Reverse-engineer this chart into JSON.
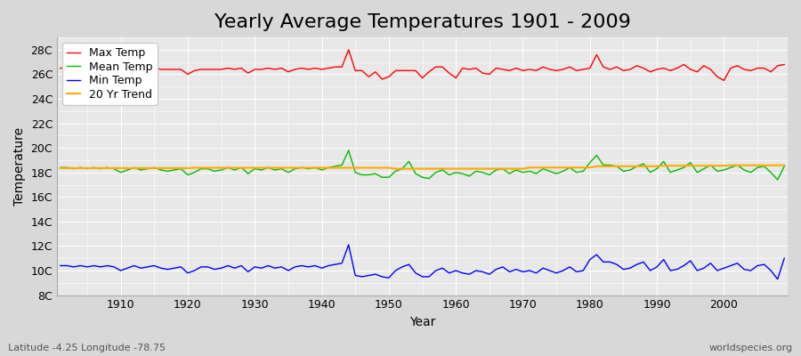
{
  "title": "Yearly Average Temperatures 1901 - 2009",
  "xlabel": "Year",
  "ylabel": "Temperature",
  "lat_lon_label": "Latitude -4.25 Longitude -78.75",
  "watermark": "worldspecies.org",
  "years": [
    1901,
    1902,
    1903,
    1904,
    1905,
    1906,
    1907,
    1908,
    1909,
    1910,
    1911,
    1912,
    1913,
    1914,
    1915,
    1916,
    1917,
    1918,
    1919,
    1920,
    1921,
    1922,
    1923,
    1924,
    1925,
    1926,
    1927,
    1928,
    1929,
    1930,
    1931,
    1932,
    1933,
    1934,
    1935,
    1936,
    1937,
    1938,
    1939,
    1940,
    1941,
    1942,
    1943,
    1944,
    1945,
    1946,
    1947,
    1948,
    1949,
    1950,
    1951,
    1952,
    1953,
    1954,
    1955,
    1956,
    1957,
    1958,
    1959,
    1960,
    1961,
    1962,
    1963,
    1964,
    1965,
    1966,
    1967,
    1968,
    1969,
    1970,
    1971,
    1972,
    1973,
    1974,
    1975,
    1976,
    1977,
    1978,
    1979,
    1980,
    1981,
    1982,
    1983,
    1984,
    1985,
    1986,
    1987,
    1988,
    1989,
    1990,
    1991,
    1992,
    1993,
    1994,
    1995,
    1996,
    1997,
    1998,
    1999,
    2000,
    2001,
    2002,
    2003,
    2004,
    2005,
    2006,
    2007,
    2008,
    2009
  ],
  "max_temp": [
    26.5,
    26.5,
    26.4,
    26.5,
    26.4,
    26.5,
    26.4,
    26.5,
    26.4,
    26.2,
    26.4,
    26.4,
    26.4,
    26.3,
    26.5,
    26.4,
    26.4,
    26.4,
    26.4,
    26.0,
    26.3,
    26.4,
    26.4,
    26.4,
    26.4,
    26.5,
    26.4,
    26.5,
    26.1,
    26.4,
    26.4,
    26.5,
    26.4,
    26.5,
    26.2,
    26.4,
    26.5,
    26.4,
    26.5,
    26.4,
    26.5,
    26.6,
    26.6,
    28.0,
    26.3,
    26.3,
    25.8,
    26.2,
    25.6,
    25.8,
    26.3,
    26.3,
    26.3,
    26.3,
    25.7,
    26.2,
    26.6,
    26.6,
    26.1,
    25.7,
    26.5,
    26.4,
    26.5,
    26.1,
    26.0,
    26.5,
    26.4,
    26.3,
    26.5,
    26.3,
    26.4,
    26.3,
    26.6,
    26.4,
    26.3,
    26.4,
    26.6,
    26.3,
    26.4,
    26.5,
    27.6,
    26.6,
    26.4,
    26.6,
    26.3,
    26.4,
    26.7,
    26.5,
    26.2,
    26.4,
    26.5,
    26.3,
    26.5,
    26.8,
    26.4,
    26.2,
    26.7,
    26.4,
    25.8,
    25.5,
    26.5,
    26.7,
    26.4,
    26.3,
    26.5,
    26.5,
    26.2,
    26.7,
    26.8
  ],
  "mean_temp": [
    18.4,
    18.4,
    18.3,
    18.4,
    18.3,
    18.4,
    18.3,
    18.4,
    18.3,
    18.0,
    18.2,
    18.4,
    18.2,
    18.3,
    18.4,
    18.2,
    18.1,
    18.2,
    18.3,
    17.8,
    18.0,
    18.3,
    18.3,
    18.1,
    18.2,
    18.4,
    18.2,
    18.4,
    17.9,
    18.3,
    18.2,
    18.4,
    18.2,
    18.3,
    18.0,
    18.3,
    18.4,
    18.3,
    18.4,
    18.2,
    18.4,
    18.5,
    18.6,
    19.8,
    18.0,
    17.8,
    17.8,
    17.9,
    17.6,
    17.6,
    18.1,
    18.3,
    18.9,
    17.9,
    17.6,
    17.5,
    18.0,
    18.2,
    17.8,
    18.0,
    17.9,
    17.7,
    18.1,
    18.0,
    17.8,
    18.2,
    18.3,
    17.9,
    18.2,
    18.0,
    18.1,
    17.9,
    18.3,
    18.1,
    17.9,
    18.1,
    18.4,
    18.0,
    18.1,
    18.8,
    19.4,
    18.6,
    18.6,
    18.5,
    18.1,
    18.2,
    18.5,
    18.7,
    18.0,
    18.3,
    18.9,
    18.0,
    18.2,
    18.4,
    18.8,
    18.0,
    18.3,
    18.6,
    18.1,
    18.2,
    18.4,
    18.6,
    18.2,
    18.0,
    18.4,
    18.5,
    18.0,
    17.4,
    18.5
  ],
  "min_temp": [
    10.4,
    10.4,
    10.3,
    10.4,
    10.3,
    10.4,
    10.3,
    10.4,
    10.3,
    10.0,
    10.2,
    10.4,
    10.2,
    10.3,
    10.4,
    10.2,
    10.1,
    10.2,
    10.3,
    9.8,
    10.0,
    10.3,
    10.3,
    10.1,
    10.2,
    10.4,
    10.2,
    10.4,
    9.9,
    10.3,
    10.2,
    10.4,
    10.2,
    10.3,
    10.0,
    10.3,
    10.4,
    10.3,
    10.4,
    10.2,
    10.4,
    10.5,
    10.6,
    12.1,
    9.6,
    9.5,
    9.6,
    9.7,
    9.5,
    9.4,
    10.0,
    10.3,
    10.5,
    9.8,
    9.5,
    9.5,
    10.0,
    10.2,
    9.8,
    10.0,
    9.8,
    9.7,
    10.0,
    9.9,
    9.7,
    10.1,
    10.3,
    9.9,
    10.1,
    9.9,
    10.0,
    9.8,
    10.2,
    10.0,
    9.8,
    10.0,
    10.3,
    9.9,
    10.0,
    10.9,
    11.3,
    10.7,
    10.7,
    10.5,
    10.1,
    10.2,
    10.5,
    10.7,
    10.0,
    10.3,
    10.9,
    10.0,
    10.1,
    10.4,
    10.8,
    10.0,
    10.2,
    10.6,
    10.0,
    10.2,
    10.4,
    10.6,
    10.1,
    10.0,
    10.4,
    10.5,
    10.0,
    9.3,
    11.0
  ],
  "trend_mean": [
    18.35,
    18.35,
    18.35,
    18.35,
    18.35,
    18.35,
    18.35,
    18.35,
    18.35,
    18.35,
    18.35,
    18.35,
    18.35,
    18.35,
    18.35,
    18.35,
    18.35,
    18.35,
    18.35,
    18.35,
    18.38,
    18.38,
    18.38,
    18.38,
    18.38,
    18.38,
    18.38,
    18.38,
    18.38,
    18.38,
    18.38,
    18.38,
    18.38,
    18.38,
    18.38,
    18.38,
    18.38,
    18.38,
    18.38,
    18.38,
    18.38,
    18.38,
    18.38,
    18.38,
    18.38,
    18.38,
    18.38,
    18.38,
    18.38,
    18.38,
    18.3,
    18.3,
    18.3,
    18.3,
    18.3,
    18.3,
    18.3,
    18.3,
    18.3,
    18.3,
    18.3,
    18.3,
    18.3,
    18.3,
    18.3,
    18.3,
    18.3,
    18.3,
    18.3,
    18.3,
    18.4,
    18.4,
    18.4,
    18.4,
    18.4,
    18.4,
    18.4,
    18.4,
    18.4,
    18.4,
    18.5,
    18.5,
    18.5,
    18.5,
    18.5,
    18.5,
    18.5,
    18.5,
    18.5,
    18.5,
    18.55,
    18.55,
    18.55,
    18.55,
    18.55,
    18.55,
    18.55,
    18.55,
    18.55,
    18.55,
    18.58,
    18.58,
    18.58,
    18.58,
    18.58,
    18.58,
    18.58,
    18.58,
    18.58
  ],
  "max_color": "#ff0000",
  "mean_color": "#00bb00",
  "min_color": "#0000ff",
  "trend_color": "#ffaa00",
  "fig_bg_color": "#d8d8d8",
  "plot_bg_color": "#e8e8e8",
  "grid_color": "#ffffff",
  "ylim": [
    8,
    29
  ],
  "yticks": [
    8,
    10,
    12,
    14,
    16,
    18,
    20,
    22,
    24,
    26,
    28
  ],
  "ytick_labels": [
    "8C",
    "10C",
    "12C",
    "14C",
    "16C",
    "18C",
    "20C",
    "22C",
    "24C",
    "26C",
    "28C"
  ],
  "title_fontsize": 16,
  "axis_label_fontsize": 10,
  "tick_fontsize": 9,
  "legend_fontsize": 9
}
